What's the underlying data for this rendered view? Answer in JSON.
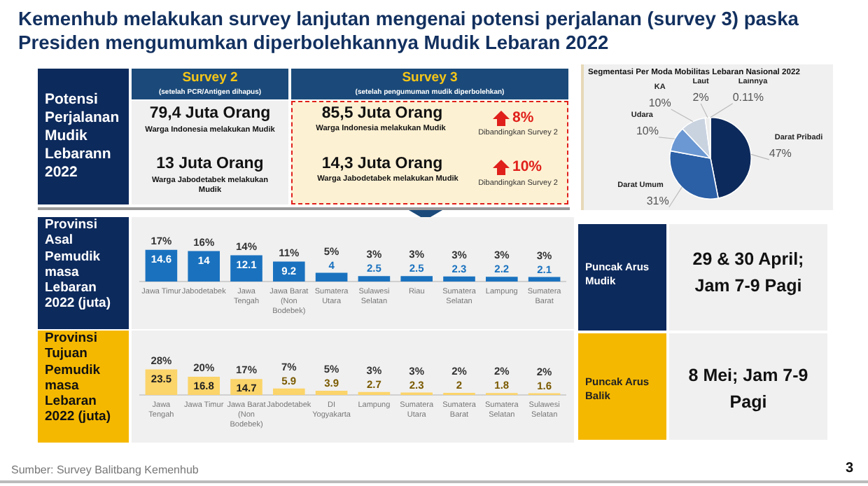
{
  "chart_data": [
    {
      "type": "other",
      "title": "Kemenhub melakukan survey lanjutan mengenai potensi perjalanan (survey 3) paska Presiden mengumumkan diperbolehkannya Mudik Lebaran 2022",
      "annotations": [
        "Potensi Perjalanan Mudik Lebarann 2022",
        "Survey 2",
        "(setelah PCR/Antigen dihapus)",
        "79,4 Juta Orang",
        "Warga Indonesia melakukan Mudik",
        "13 Juta Orang",
        "Warga Jabodetabek melakukan Mudik",
        "Survey 3",
        "(setelah pengumuman mudik diperbolehkan)",
        "85,5 Juta Orang",
        "Warga Indonesia melakukan Mudik",
        "8%",
        "Dibandingkan Survey 2",
        "14,3 Juta Orang",
        "Warga Jabodetabek melakukan Mudik",
        "10%",
        "Dibandingkan Survey 2",
        "Sumber: Survey Balitbang Kemenhub",
        "3"
      ]
    },
    {
      "type": "pie",
      "title": "Segmentasi Per Moda Mobilitas Lebaran Nasional 2022",
      "categories": [
        "Darat Pribadi",
        "Darat Umum",
        "Udara",
        "KA",
        "Laut",
        "Lainnya"
      ],
      "values": [
        47,
        31,
        10,
        10,
        2,
        0.11
      ],
      "colors": [
        "#0d2a5c",
        "#2b5fa6",
        "#6b98d3",
        "#c9d3e0",
        "#ececec",
        "#f2c200"
      ],
      "value_labels": [
        "47%",
        "31%",
        "10%",
        "10%",
        "2%",
        "0.11%"
      ]
    },
    {
      "type": "bar",
      "title": "Provinsi Asal Pemudik masa Lebaran 2022 (juta)",
      "color": "#1a72bf",
      "data_labels": true,
      "categories": [
        "Jawa Timur",
        "Jabodetabek",
        "Jawa Tengah",
        "Jawa Barat (Non Bodebek)",
        "Sumatera Utara",
        "Sulawesi Selatan",
        "Riau",
        "Sumatera Selatan",
        "Lampung",
        "Sumatera Barat"
      ],
      "values": [
        14.6,
        14,
        12.1,
        9.2,
        4,
        2.5,
        2.5,
        2.3,
        2.2,
        2.1
      ],
      "annotations": [
        {
          "text": "17%",
          "x": "Jawa Timur",
          "y": 14.6
        },
        {
          "text": "16%",
          "x": "Jabodetabek",
          "y": 14
        },
        {
          "text": "14%",
          "x": "Jawa Tengah",
          "y": 12.1
        },
        {
          "text": "11%",
          "x": "Jawa Barat (Non Bodebek)",
          "y": 9.2
        },
        {
          "text": "5%",
          "x": "Sumatera Utara",
          "y": 4
        },
        {
          "text": "3%",
          "x": "Sulawesi Selatan",
          "y": 2.5
        },
        {
          "text": "3%",
          "x": "Riau",
          "y": 2.5
        },
        {
          "text": "3%",
          "x": "Sumatera Selatan",
          "y": 2.3
        },
        {
          "text": "3%",
          "x": "Lampung",
          "y": 2.2
        },
        {
          "text": "3%",
          "x": "Sumatera Barat",
          "y": 2.1
        }
      ]
    },
    {
      "type": "bar",
      "title": "Provinsi Tujuan Pemudik masa Lebaran 2022 (juta)",
      "color": "#fbd46a",
      "data_labels": true,
      "categories": [
        "Jawa Tengah",
        "Jawa Timur",
        "Jawa Barat (Non Bodebek)",
        "Jabodetabek",
        "DI Yogyakarta",
        "Lampung",
        "Sumatera Utara",
        "Sumatera Barat",
        "Sumatera Selatan",
        "Sulawesi Selatan"
      ],
      "values": [
        23.5,
        16.8,
        14.7,
        5.9,
        3.9,
        2.7,
        2.3,
        2,
        1.8,
        1.6
      ],
      "annotations": [
        {
          "text": "28%",
          "x": "Jawa Tengah",
          "y": 23.5
        },
        {
          "text": "20%",
          "x": "Jawa Timur",
          "y": 16.8
        },
        {
          "text": "17%",
          "x": "Jawa Barat (Non Bodebek)",
          "y": 14.7
        },
        {
          "text": "7%",
          "x": "Jabodetabek",
          "y": 5.9
        },
        {
          "text": "5%",
          "x": "DI Yogyakarta",
          "y": 3.9
        },
        {
          "text": "3%",
          "x": "Lampung",
          "y": 2.7
        },
        {
          "text": "3%",
          "x": "Sumatera Utara",
          "y": 2.3
        },
        {
          "text": "2%",
          "x": "Sumatera Barat",
          "y": 2
        },
        {
          "text": "2%",
          "x": "Sumatera Selatan",
          "y": 1.8
        },
        {
          "text": "2%",
          "x": "Sulawesi Selatan",
          "y": 1.6
        }
      ]
    },
    {
      "type": "other",
      "title": "Puncak Arus Mudik",
      "annotations": [
        "29 & 30 April; Jam 7-9 Pagi"
      ]
    },
    {
      "type": "other",
      "title": "Puncak Arus Balik",
      "annotations": [
        "8 Mei; Jam 7-9 Pagi"
      ]
    }
  ]
}
